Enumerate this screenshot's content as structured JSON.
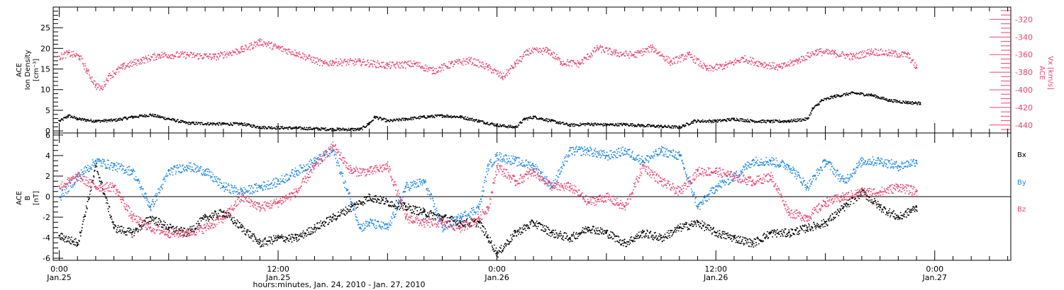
{
  "colors": {
    "density": "#000000",
    "speed": "#e8456e",
    "bx": "#000000",
    "by": "#1e88e5",
    "bz": "#e8456e"
  },
  "time_axis": {
    "label": "hours:minutes, Jan. 24, 2010 - Jan. 27, 2010",
    "range_hours": [
      -0.33,
      52.17
    ],
    "ticks": [
      {
        "hour": 0,
        "time": "0:00",
        "date": "Jan.25"
      },
      {
        "hour": 12,
        "time": "12:00",
        "date": "Jan.25"
      },
      {
        "hour": 24,
        "time": "0:00",
        "date": "Jan.26"
      },
      {
        "hour": 36,
        "time": "12:00",
        "date": "Jan.26"
      },
      {
        "hour": 48,
        "time": "0:00",
        "date": "Jan.27"
      }
    ]
  },
  "chart_data": [
    {
      "type": "scatter",
      "panel": "top",
      "ylabel_left": [
        "ACE",
        "Ion Density",
        "[cm⁻³]"
      ],
      "ylabel_right": [
        "ACE",
        "Vx [km/s]"
      ],
      "ylim": [
        -0.5,
        30
      ],
      "yticks": [
        0,
        5,
        10,
        15,
        20,
        25
      ],
      "y2lim": [
        -449,
        -306
      ],
      "y2ticks": [
        -320,
        -340,
        -360,
        -380,
        -400,
        -420,
        -440
      ],
      "series": [
        {
          "key": "density",
          "axis": "left",
          "points": [
            [
              0,
              2.5
            ],
            [
              0.5,
              3.8
            ],
            [
              1,
              3
            ],
            [
              2,
              2.5
            ],
            [
              3,
              2.7
            ],
            [
              4,
              3.5
            ],
            [
              5,
              4
            ],
            [
              6,
              3
            ],
            [
              7,
              2
            ],
            [
              9,
              1.8
            ],
            [
              10,
              1.8
            ],
            [
              11,
              1
            ],
            [
              13,
              0.8
            ],
            [
              15,
              0.5
            ],
            [
              16.5,
              0.5
            ],
            [
              17,
              2
            ],
            [
              17.3,
              3.5
            ],
            [
              18,
              2.5
            ],
            [
              19,
              3
            ],
            [
              20,
              3.5
            ],
            [
              21,
              3.8
            ],
            [
              22,
              3.5
            ],
            [
              23,
              2.5
            ],
            [
              24,
              1.5
            ],
            [
              25,
              1
            ],
            [
              25.5,
              3
            ],
            [
              26,
              3.5
            ],
            [
              27,
              2.5
            ],
            [
              28,
              1.5
            ],
            [
              29,
              1.8
            ],
            [
              30,
              1.6
            ],
            [
              31,
              1.7
            ],
            [
              32,
              1.4
            ],
            [
              33,
              1.2
            ],
            [
              34,
              1
            ],
            [
              34.8,
              2.5
            ],
            [
              36,
              2.5
            ],
            [
              37,
              3
            ],
            [
              38,
              2.5
            ],
            [
              39,
              2.4
            ],
            [
              40,
              2.5
            ],
            [
              41,
              3
            ],
            [
              41.3,
              5.5
            ],
            [
              41.8,
              7.5
            ],
            [
              42.5,
              8.5
            ],
            [
              43.5,
              9.3
            ],
            [
              44.5,
              8.8
            ],
            [
              45.5,
              7.5
            ],
            [
              46.5,
              7
            ],
            [
              47.2,
              6.8
            ]
          ]
        },
        {
          "key": "speed",
          "axis": "right",
          "points": [
            [
              0,
              -362
            ],
            [
              0.5,
              -358
            ],
            [
              1.1,
              -362
            ],
            [
              1.5,
              -378
            ],
            [
              2,
              -395
            ],
            [
              2.3,
              -398
            ],
            [
              2.7,
              -384
            ],
            [
              3.5,
              -373
            ],
            [
              4.5,
              -366
            ],
            [
              5.5,
              -360
            ],
            [
              7,
              -360
            ],
            [
              8.5,
              -362
            ],
            [
              10,
              -354
            ],
            [
              11,
              -345
            ],
            [
              12,
              -352
            ],
            [
              13,
              -358
            ],
            [
              14.5,
              -370
            ],
            [
              15,
              -368
            ],
            [
              16.5,
              -368
            ],
            [
              18,
              -372
            ],
            [
              19.5,
              -370
            ],
            [
              20.5,
              -378
            ],
            [
              21.5,
              -370
            ],
            [
              22.5,
              -366
            ],
            [
              23.5,
              -374
            ],
            [
              24.3,
              -385
            ],
            [
              25,
              -370
            ],
            [
              25.7,
              -356
            ],
            [
              26.8,
              -355
            ],
            [
              27.5,
              -368
            ],
            [
              28.5,
              -370
            ],
            [
              29.5,
              -352
            ],
            [
              30.5,
              -358
            ],
            [
              31.5,
              -360
            ],
            [
              32.5,
              -352
            ],
            [
              33.5,
              -368
            ],
            [
              34.5,
              -360
            ],
            [
              35.5,
              -376
            ],
            [
              36.5,
              -372
            ],
            [
              37.5,
              -364
            ],
            [
              38.5,
              -370
            ],
            [
              39.5,
              -374
            ],
            [
              40.5,
              -366
            ],
            [
              41.5,
              -356
            ],
            [
              42.5,
              -358
            ],
            [
              43.5,
              -362
            ],
            [
              44.5,
              -356
            ],
            [
              45.5,
              -358
            ],
            [
              46.5,
              -360
            ],
            [
              47,
              -375
            ]
          ]
        }
      ]
    },
    {
      "type": "scatter",
      "panel": "bottom",
      "ylabel_left": [
        "ACE",
        "B",
        "[nT]"
      ],
      "ylim": [
        -6.2,
        6.2
      ],
      "yticks": [
        -6,
        -4,
        -2,
        0,
        2,
        4,
        6
      ],
      "zero_line": true,
      "legend": [
        "Bx",
        "By",
        "Bz"
      ],
      "series": [
        {
          "key": "bx",
          "name": "Bx",
          "points": [
            [
              0,
              -3.8
            ],
            [
              1,
              -4.5
            ],
            [
              2,
              3
            ],
            [
              3,
              -3
            ],
            [
              4,
              -3.5
            ],
            [
              5,
              -2
            ],
            [
              6,
              -3
            ],
            [
              7,
              -3.5
            ],
            [
              8,
              -2
            ],
            [
              9,
              -1.5
            ],
            [
              10,
              -3
            ],
            [
              11,
              -4.5
            ],
            [
              12,
              -4
            ],
            [
              13,
              -4
            ],
            [
              14,
              -3
            ],
            [
              15,
              -2
            ],
            [
              16,
              -1
            ],
            [
              17,
              0
            ],
            [
              18,
              -0.5
            ],
            [
              19,
              -1
            ],
            [
              20,
              -1.5
            ],
            [
              21,
              -2
            ],
            [
              22,
              -2.5
            ],
            [
              23,
              -2.5
            ],
            [
              23.5,
              -4
            ],
            [
              24,
              -5.5
            ],
            [
              25,
              -3.5
            ],
            [
              26,
              -2.5
            ],
            [
              27,
              -3.5
            ],
            [
              28,
              -4
            ],
            [
              29,
              -3
            ],
            [
              30,
              -3.5
            ],
            [
              31,
              -4.5
            ],
            [
              32,
              -3.5
            ],
            [
              33,
              -4
            ],
            [
              34,
              -3
            ],
            [
              35,
              -2.5
            ],
            [
              36,
              -3.5
            ],
            [
              37,
              -4
            ],
            [
              38,
              -4.5
            ],
            [
              39,
              -3.5
            ],
            [
              40,
              -3.5
            ],
            [
              41,
              -3
            ],
            [
              42,
              -2.5
            ],
            [
              43,
              -1
            ],
            [
              44,
              0.5
            ],
            [
              45,
              -1
            ],
            [
              46,
              -2
            ],
            [
              47,
              -1
            ]
          ]
        },
        {
          "key": "by",
          "name": "By",
          "points": [
            [
              0,
              0
            ],
            [
              1,
              2
            ],
            [
              2,
              3.5
            ],
            [
              3,
              3
            ],
            [
              4,
              2.5
            ],
            [
              5,
              -1
            ],
            [
              6,
              2.5
            ],
            [
              7,
              3
            ],
            [
              8,
              2.5
            ],
            [
              9,
              1
            ],
            [
              10,
              0.5
            ],
            [
              11,
              1
            ],
            [
              12,
              1.5
            ],
            [
              13,
              2.5
            ],
            [
              14,
              3.5
            ],
            [
              15,
              4.5
            ],
            [
              16,
              -0.5
            ],
            [
              16.5,
              -3
            ],
            [
              17,
              -2.5
            ],
            [
              18,
              -3
            ],
            [
              19,
              1
            ],
            [
              20,
              1.5
            ],
            [
              21,
              -3
            ],
            [
              22,
              -2
            ],
            [
              23,
              -1
            ],
            [
              23.5,
              3
            ],
            [
              24,
              4
            ],
            [
              25,
              3.5
            ],
            [
              26,
              3
            ],
            [
              27,
              1
            ],
            [
              28,
              4.5
            ],
            [
              29,
              4.5
            ],
            [
              30,
              4
            ],
            [
              31,
              4.5
            ],
            [
              32,
              3.5
            ],
            [
              33,
              4.5
            ],
            [
              34,
              4
            ],
            [
              35,
              -1
            ],
            [
              36,
              1
            ],
            [
              37,
              2
            ],
            [
              38,
              3.5
            ],
            [
              39,
              3.5
            ],
            [
              40,
              3
            ],
            [
              41,
              1
            ],
            [
              42,
              3.5
            ],
            [
              43,
              1.5
            ],
            [
              44,
              3.5
            ],
            [
              45,
              3.5
            ],
            [
              46,
              3
            ],
            [
              47,
              3.5
            ]
          ]
        },
        {
          "key": "bz",
          "name": "Bz",
          "points": [
            [
              0,
              1
            ],
            [
              1,
              2
            ],
            [
              2,
              1
            ],
            [
              3,
              1
            ],
            [
              4,
              -2
            ],
            [
              5,
              -3
            ],
            [
              6,
              -3.5
            ],
            [
              7,
              -3.5
            ],
            [
              8,
              -3
            ],
            [
              9,
              -2
            ],
            [
              10,
              0
            ],
            [
              11,
              -1
            ],
            [
              12,
              -0.5
            ],
            [
              13,
              0.5
            ],
            [
              14,
              3
            ],
            [
              15,
              5
            ],
            [
              16,
              2.5
            ],
            [
              17,
              2.5
            ],
            [
              18,
              3
            ],
            [
              19,
              -2
            ],
            [
              20,
              -2.5
            ],
            [
              21,
              -2.5
            ],
            [
              22,
              -3
            ],
            [
              23,
              -2
            ],
            [
              23.5,
              -1
            ],
            [
              24,
              3
            ],
            [
              25,
              1.5
            ],
            [
              26,
              2.5
            ],
            [
              27,
              1
            ],
            [
              28,
              1
            ],
            [
              29,
              -0.5
            ],
            [
              30,
              0
            ],
            [
              31,
              -1
            ],
            [
              32,
              3
            ],
            [
              33,
              1.5
            ],
            [
              34,
              0.5
            ],
            [
              35,
              2.5
            ],
            [
              36,
              2.5
            ],
            [
              37,
              2
            ],
            [
              38,
              1.5
            ],
            [
              39,
              2
            ],
            [
              40,
              -1.5
            ],
            [
              41,
              -2
            ],
            [
              42,
              -0.5
            ],
            [
              43,
              0
            ],
            [
              44,
              0.5
            ],
            [
              45,
              0.5
            ],
            [
              46,
              1
            ],
            [
              47,
              0.5
            ]
          ]
        }
      ]
    }
  ]
}
